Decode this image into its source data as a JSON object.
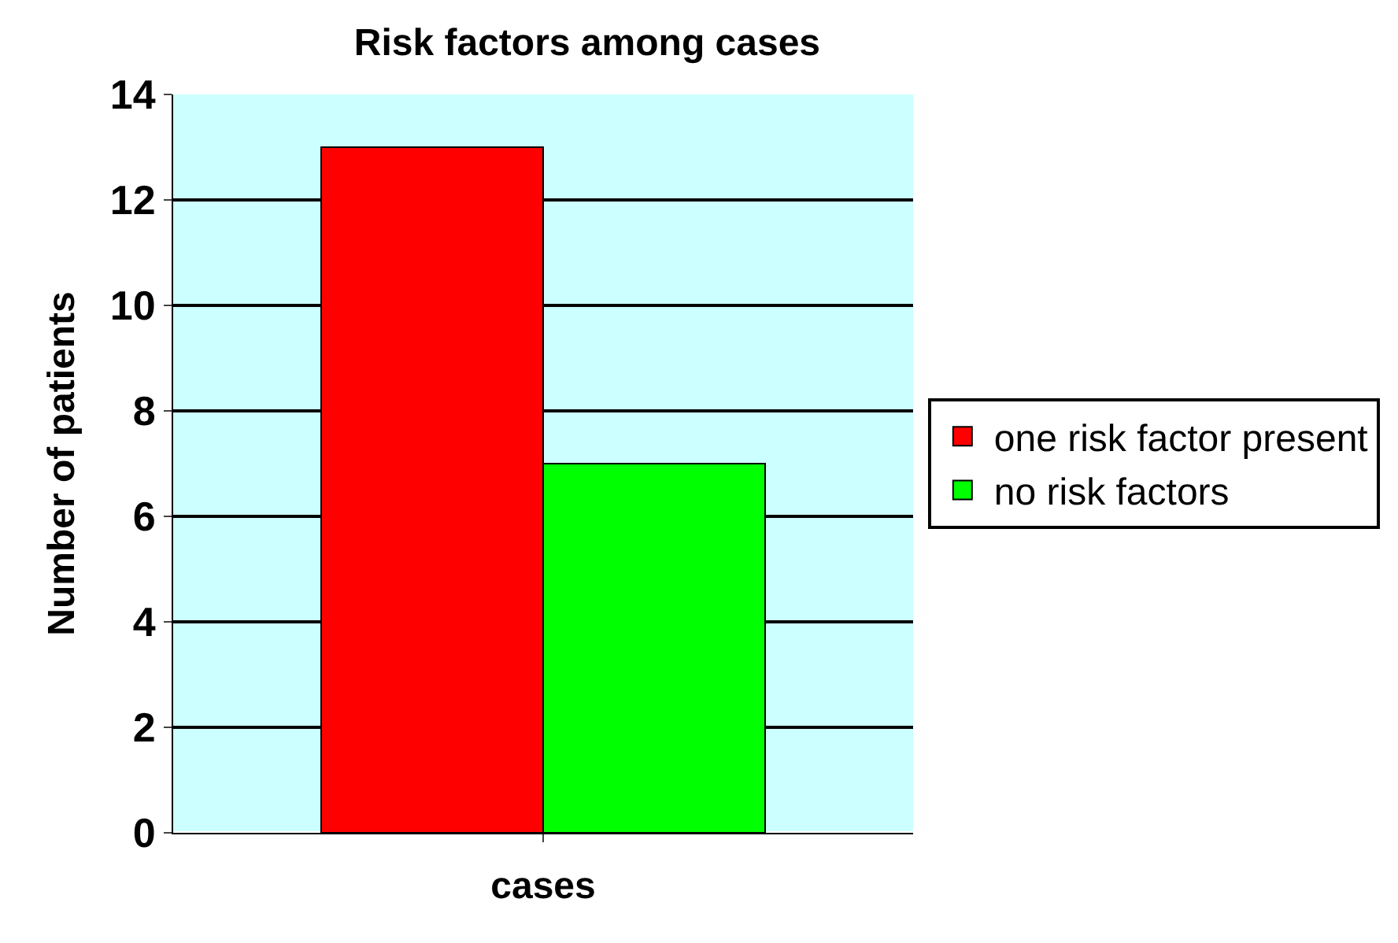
{
  "chart_data": {
    "type": "bar",
    "title": "Risk factors among cases",
    "xlabel": "cases",
    "ylabel": "Number of patients",
    "categories": [
      null
    ],
    "series": [
      {
        "name": "one risk factor present",
        "color": "#ff0000",
        "values": [
          13
        ]
      },
      {
        "name": "no risk factors",
        "color": "#00ff00",
        "values": [
          7
        ]
      }
    ],
    "ylim": [
      0,
      14
    ],
    "yticks": [
      0,
      2,
      4,
      6,
      8,
      10,
      12,
      14
    ],
    "grid": "y",
    "legend": "right"
  }
}
